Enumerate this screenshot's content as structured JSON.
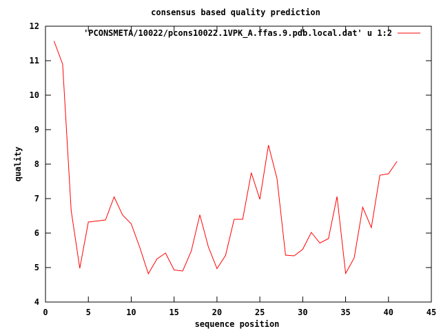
{
  "chart_data": {
    "type": "line",
    "title": "consensus based quality prediction",
    "xlabel": "sequence position",
    "ylabel": "quality",
    "xlim": [
      0,
      45
    ],
    "ylim": [
      4,
      12
    ],
    "xticks": [
      0,
      5,
      10,
      15,
      20,
      25,
      30,
      35,
      40,
      45
    ],
    "yticks": [
      4,
      5,
      6,
      7,
      8,
      9,
      10,
      11,
      12
    ],
    "grid": false,
    "legend_position": "top-right",
    "series": [
      {
        "name": "'PCONSMETA/10022/pcons10022.1VPK_A.ffas.9.pdb.local.dat' u 1:2",
        "color": "#ff0000",
        "x": [
          1,
          2,
          3,
          4,
          5,
          6,
          7,
          8,
          9,
          10,
          11,
          12,
          13,
          14,
          15,
          16,
          17,
          18,
          19,
          20,
          21,
          22,
          23,
          24,
          25,
          26,
          27,
          28,
          29,
          30,
          31,
          32,
          33,
          34,
          35,
          36,
          37,
          38,
          39,
          40,
          41
        ],
        "y": [
          11.57,
          10.9,
          6.65,
          4.98,
          6.32,
          6.35,
          6.38,
          7.05,
          6.52,
          6.27,
          5.58,
          4.82,
          5.25,
          5.42,
          4.93,
          4.9,
          5.48,
          6.53,
          5.6,
          4.97,
          5.35,
          6.4,
          6.4,
          7.75,
          6.98,
          8.55,
          7.58,
          5.36,
          5.34,
          5.53,
          6.02,
          5.71,
          5.84,
          7.06,
          4.83,
          5.28,
          6.75,
          6.16,
          7.68,
          7.72,
          8.08
        ]
      }
    ]
  }
}
